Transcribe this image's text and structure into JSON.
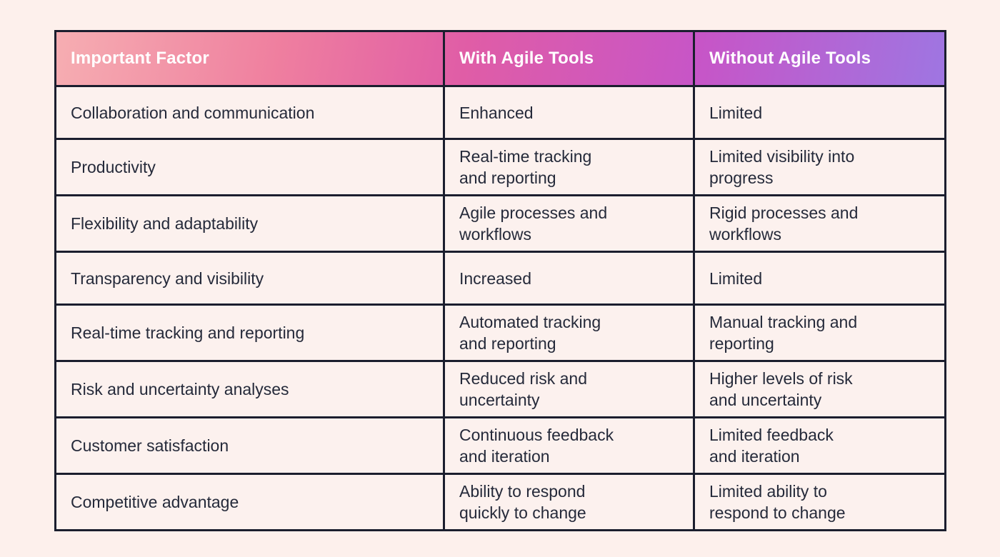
{
  "colors": {
    "page_background": "#fdf0ec",
    "cell_background": "#fcf1ee",
    "border": "#1b1e2e",
    "body_text": "#252a3a",
    "header_text": "#ffffff",
    "header_gradient": [
      "#f6aeb2",
      "#ef7f9f",
      "#e05da6",
      "#c755c7",
      "#9e76e2"
    ]
  },
  "table": {
    "headers": [
      "Important Factor",
      "With Agile Tools",
      "Without Agile Tools"
    ],
    "rows": [
      [
        "Collaboration and communication",
        "Enhanced",
        "Limited"
      ],
      [
        "Productivity",
        "Real-time tracking\nand reporting",
        "Limited visibility into\nprogress"
      ],
      [
        "Flexibility and adaptability",
        "Agile processes and\nworkflows",
        "Rigid processes and\nworkflows"
      ],
      [
        "Transparency and visibility",
        "Increased",
        "Limited"
      ],
      [
        "Real-time tracking and reporting",
        "Automated tracking\nand reporting",
        "Manual tracking and\nreporting"
      ],
      [
        "Risk and uncertainty analyses",
        "Reduced risk and\nuncertainty",
        "Higher levels of risk\nand uncertainty"
      ],
      [
        "Customer satisfaction",
        "Continuous feedback\nand iteration",
        "Limited feedback\nand iteration"
      ],
      [
        "Competitive advantage",
        "Ability to respond\nquickly to change",
        "Limited ability to\nrespond to change"
      ]
    ]
  }
}
